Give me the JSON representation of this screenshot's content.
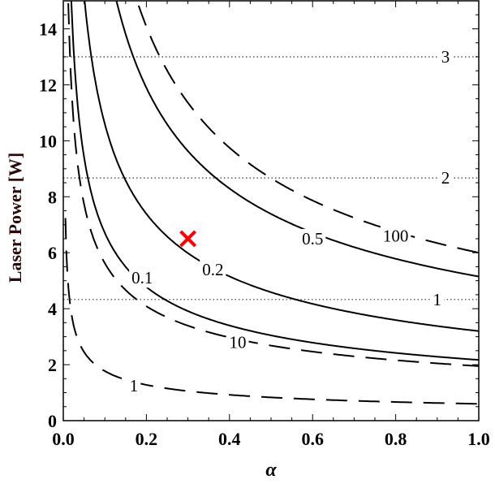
{
  "chart_data": {
    "type": "line",
    "title": "",
    "xlabel": "α",
    "ylabel": "Laser Power [W]",
    "xlim": [
      0,
      1
    ],
    "ylim": [
      0,
      15
    ],
    "xticks": [
      "0.0",
      "0.2",
      "0.4",
      "0.6",
      "0.8",
      "1.0"
    ],
    "yticks": [
      "0",
      "2",
      "4",
      "6",
      "8",
      "10",
      "12",
      "14"
    ],
    "grid": false,
    "series": [
      {
        "name": "0.1",
        "style": "solid",
        "model": "P = 2.17 * α^-0.49",
        "label_at": [
          0.19,
          5.1
        ]
      },
      {
        "name": "0.2",
        "style": "solid",
        "model": "P = 3.2 * α^-0.52",
        "label_at": [
          0.36,
          5.4
        ]
      },
      {
        "name": "0.5",
        "style": "solid",
        "model": "P = 5.15 * α^-0.52",
        "label_at": [
          0.6,
          6.5
        ]
      },
      {
        "name": "1",
        "style": "dashed",
        "model": "P = 0.6 * α^-0.47",
        "label_at": [
          0.17,
          1.25
        ]
      },
      {
        "name": "10",
        "style": "dashed",
        "model": "P = 1.95 * α^-0.46",
        "label_at": [
          0.42,
          2.8
        ]
      },
      {
        "name": "100",
        "style": "dashed",
        "model": "P = 6.0 * α^-0.53",
        "label_at": [
          0.8,
          6.6
        ]
      }
    ],
    "curve_params": [
      {
        "A": 2.17,
        "b": 0.49
      },
      {
        "A": 3.2,
        "b": 0.52
      },
      {
        "A": 5.15,
        "b": 0.52
      },
      {
        "A": 0.6,
        "b": 0.47
      },
      {
        "A": 1.95,
        "b": 0.46
      },
      {
        "A": 6.0,
        "b": 0.53
      }
    ],
    "hlines": [
      {
        "y": 13.0,
        "label": "3",
        "label_x": 0.92
      },
      {
        "y": 8.67,
        "label": "2",
        "label_x": 0.92
      },
      {
        "y": 4.33,
        "label": "1",
        "label_x": 0.9
      }
    ],
    "marker": {
      "x": 0.3,
      "y": 6.5,
      "symbol": "x",
      "color": "#ff0000"
    },
    "ylabel_color": "#2a0a0a"
  }
}
